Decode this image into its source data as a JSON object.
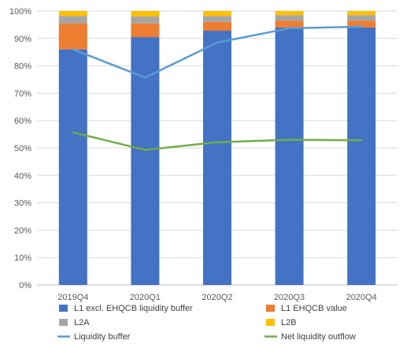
{
  "chart_data": {
    "type": "bar",
    "stacked": true,
    "categories": [
      "2019Q4",
      "2020Q1",
      "2020Q2",
      "2020Q3",
      "2020Q4"
    ],
    "series": [
      {
        "name": "L1 excl. EHQCB liquidity buffer",
        "kind": "bar",
        "color": "#4472C4",
        "values": [
          0.86,
          0.905,
          0.928,
          0.94,
          0.94
        ]
      },
      {
        "name": "L1 EHQCB value",
        "kind": "bar",
        "color": "#ED7D31",
        "values": [
          0.095,
          0.05,
          0.032,
          0.025,
          0.025
        ]
      },
      {
        "name": "L2A",
        "kind": "bar",
        "color": "#A5A5A5",
        "values": [
          0.027,
          0.025,
          0.022,
          0.02,
          0.02
        ]
      },
      {
        "name": "L2B",
        "kind": "bar",
        "color": "#FFC000",
        "values": [
          0.018,
          0.02,
          0.018,
          0.015,
          0.015
        ]
      },
      {
        "name": "Liquidity buffer",
        "kind": "line",
        "color": "#5B9BD5",
        "values": [
          0.86,
          0.757,
          0.885,
          0.937,
          0.943
        ]
      },
      {
        "name": "Net liquidity outflow",
        "kind": "line",
        "color": "#70AD47",
        "values": [
          0.557,
          0.493,
          0.521,
          0.53,
          0.528
        ]
      }
    ],
    "y_ticks": [
      "0%",
      "10%",
      "20%",
      "30%",
      "40%",
      "50%",
      "60%",
      "70%",
      "80%",
      "90%",
      "100%"
    ],
    "ylim": [
      0,
      1
    ],
    "grid": true,
    "legend_position": "bottom"
  }
}
